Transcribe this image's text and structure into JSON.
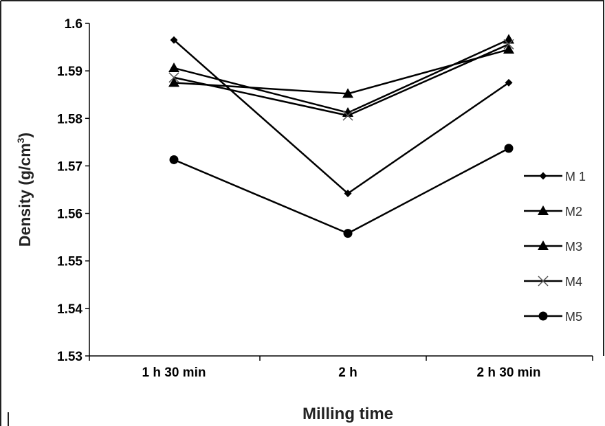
{
  "chart_data": {
    "type": "line",
    "categories": [
      "1 h 30 min",
      "2 h",
      "2 h 30 min"
    ],
    "xlabel": "Milling time",
    "ylabel": {
      "prefix": "Density (g/cm",
      "superscript": "3",
      "suffix": ")"
    },
    "ylim": [
      1.53,
      1.6
    ],
    "yticks": [
      "1.53",
      "1.54",
      "1.55",
      "1.56",
      "1.57",
      "1.58",
      "1.59",
      "1.6"
    ],
    "grid": false,
    "legend_position": "right",
    "series": [
      {
        "name": "M 1",
        "marker": "diamond",
        "values": [
          1.5965,
          1.5642,
          1.5875
        ]
      },
      {
        "name": "M2",
        "marker": "triangle",
        "values": [
          1.5875,
          1.5852,
          1.5945
        ]
      },
      {
        "name": "M3",
        "marker": "triangle",
        "values": [
          1.5906,
          1.5812,
          1.5966
        ]
      },
      {
        "name": "M4",
        "marker": "cross",
        "values": [
          1.5886,
          1.5806,
          1.5956
        ]
      },
      {
        "name": "M5",
        "marker": "circle",
        "values": [
          1.5713,
          1.5558,
          1.5737
        ]
      }
    ],
    "colors": {
      "line": "#000000",
      "frame": "#222222"
    }
  }
}
